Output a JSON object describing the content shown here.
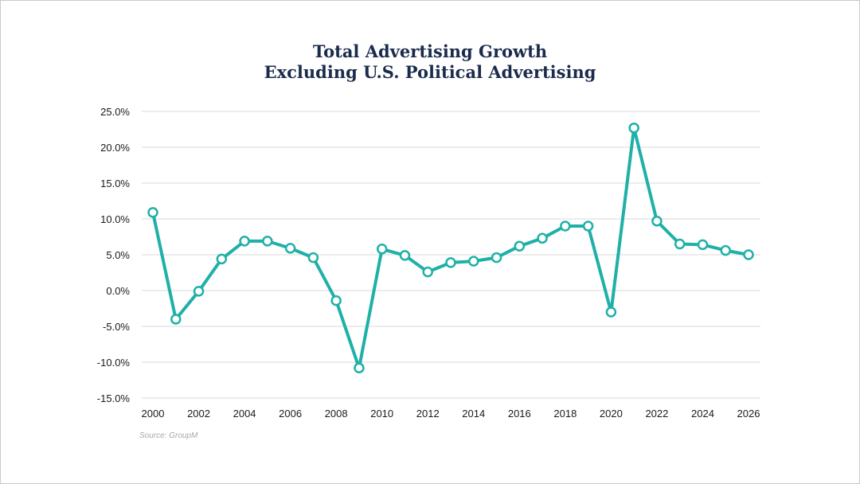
{
  "chart_data": {
    "type": "line",
    "title_line1": "Total Advertising Growth",
    "title_line2": "Excluding U.S. Political Advertising",
    "xlabel": "",
    "ylabel": "",
    "ylim": [
      -15,
      25
    ],
    "y_ticks": [
      25,
      20,
      15,
      10,
      5,
      0,
      -5,
      -10,
      -15
    ],
    "y_tick_labels": [
      "25.0%",
      "20.0%",
      "15.0%",
      "10.0%",
      "5.0%",
      "0.0%",
      "-5.0%",
      "-10.0%",
      "-15.0%"
    ],
    "x_tick_labels": [
      "2000",
      "2002",
      "2004",
      "2006",
      "2008",
      "2010",
      "2012",
      "2014",
      "2016",
      "2018",
      "2020",
      "2022",
      "2024",
      "2026"
    ],
    "grid": true,
    "legend": "none",
    "series": [
      {
        "color": "#1fb0a8",
        "x": [
          2000,
          2001,
          2002,
          2003,
          2004,
          2005,
          2006,
          2007,
          2008,
          2009,
          2010,
          2011,
          2012,
          2013,
          2014,
          2015,
          2016,
          2017,
          2018,
          2019,
          2020,
          2021,
          2022,
          2023,
          2024,
          2025,
          2026
        ],
        "values": [
          10.9,
          -4.0,
          -0.1,
          4.4,
          6.9,
          6.9,
          5.9,
          4.6,
          -1.4,
          -10.8,
          5.8,
          4.9,
          2.6,
          3.9,
          4.1,
          4.6,
          6.2,
          7.3,
          9.0,
          9.0,
          -3.0,
          22.7,
          9.7,
          6.5,
          6.4,
          5.6,
          5.0
        ]
      }
    ],
    "source": "Source: GroupM"
  },
  "colors": {
    "title": "#1a2b4c",
    "line": "#1fb0a8",
    "grid": "#d9d9d9"
  }
}
